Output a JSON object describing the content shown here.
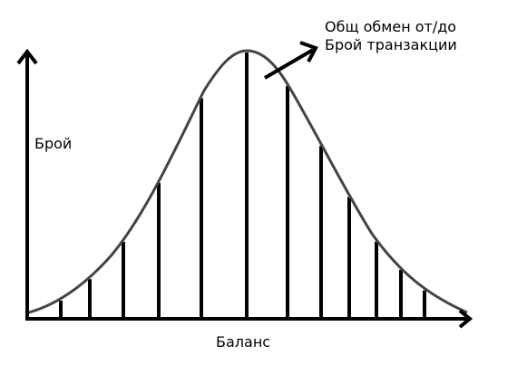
{
  "labels": {
    "y_axis": "Брой",
    "x_axis": "Баланс",
    "annotation_line1": "Общ обмен от/до",
    "annotation_line2": "Брой транзакции"
  },
  "colors": {
    "axis": "#000000",
    "curve": "#444444",
    "bars": "#000000",
    "background": "#ffffff"
  }
}
